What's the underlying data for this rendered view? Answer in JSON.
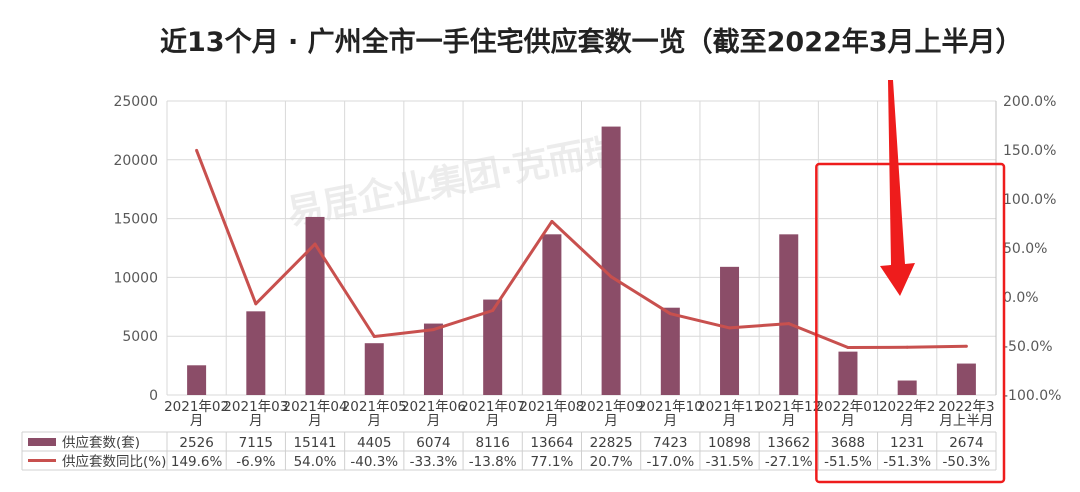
{
  "title": "近13个月 · 广州全市一手住宅供应套数一览（截至2022年3月上半月）",
  "watermark": "易居企业集团·克而瑞",
  "colors": {
    "bar": "#8b4d68",
    "line": "#c8504e",
    "highlight": "#ee1c1c",
    "arrow": "#ee1c1c"
  },
  "chart_data": {
    "type": "bar",
    "categories": [
      [
        "2021年02",
        "月"
      ],
      [
        "2021年03",
        "月"
      ],
      [
        "2021年04",
        "月"
      ],
      [
        "2021年05",
        "月"
      ],
      [
        "2021年06",
        "月"
      ],
      [
        "2021年07",
        "月"
      ],
      [
        "2021年08",
        "月"
      ],
      [
        "2021年09",
        "月"
      ],
      [
        "2021年10",
        "月"
      ],
      [
        "2021年11",
        "月"
      ],
      [
        "2021年12",
        "月"
      ],
      [
        "2022年01",
        "月"
      ],
      [
        "2022年2",
        "月"
      ],
      [
        "2022年3",
        "月上半月"
      ]
    ],
    "series": [
      {
        "name": "供应套数(套)",
        "type": "bar",
        "axis": "left",
        "values": [
          2526,
          7115,
          15141,
          4405,
          6074,
          8116,
          13664,
          22825,
          7423,
          10898,
          13662,
          3688,
          1231,
          2674
        ],
        "labels": [
          "2526",
          "7115",
          "15141",
          "4405",
          "6074",
          "8116",
          "13664",
          "22825",
          "7423",
          "10898",
          "13662",
          "3688",
          "1231",
          "2674"
        ]
      },
      {
        "name": "供应套数同比(%)",
        "type": "line",
        "axis": "right",
        "values": [
          149.6,
          -6.9,
          54.0,
          -40.3,
          -33.3,
          -13.8,
          77.1,
          20.7,
          -17.0,
          -31.5,
          -27.1,
          -51.5,
          -51.3,
          -50.3
        ],
        "labels": [
          "149.6%",
          "-6.9%",
          "54.0%",
          "-40.3%",
          "-33.3%",
          "-13.8%",
          "77.1%",
          "20.7%",
          "-17.0%",
          "-31.5%",
          "-27.1%",
          "-51.5%",
          "-51.3%",
          "-50.3%"
        ]
      }
    ],
    "y_left": {
      "range": [
        0,
        25000
      ],
      "ticks": [
        0,
        5000,
        10000,
        15000,
        20000,
        25000
      ],
      "tick_labels": [
        "0",
        "5000",
        "10000",
        "15000",
        "20000",
        "25000"
      ]
    },
    "y_right": {
      "range": [
        -100,
        200
      ],
      "ticks": [
        -100,
        -50,
        0,
        50,
        100,
        150,
        200
      ],
      "tick_labels": [
        "-100.0%",
        "-50.0%",
        "0.0%",
        "50.0%",
        "100.0%",
        "150.0%",
        "200.0%"
      ]
    },
    "grid": true,
    "legend": "data-table-bottom",
    "highlight_categories": [
      11,
      12,
      13
    ]
  }
}
